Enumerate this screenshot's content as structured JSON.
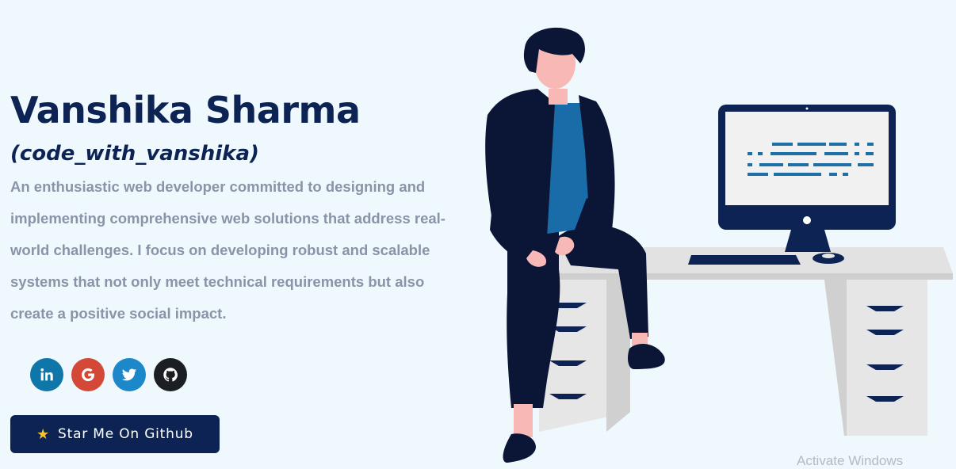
{
  "profile": {
    "name": "Vanshika Sharma",
    "handle": "(code_with_vanshika)",
    "bio": "An enthusiastic web developer committed to designing and implementing comprehensive web solutions that address real-world challenges. I focus on developing robust and scalable systems that not only meet technical requirements but also create a positive social impact."
  },
  "socials": [
    {
      "icon": "linkedin-icon",
      "color": "#0e76a8"
    },
    {
      "icon": "google-icon",
      "color": "#d34836"
    },
    {
      "icon": "twitter-icon",
      "color": "#1d88c9"
    },
    {
      "icon": "github-icon",
      "color": "#1b1f23"
    }
  ],
  "cta": {
    "icon": "star-icon",
    "label": "Star Me On Github"
  },
  "watermark": "Activate Windows",
  "colors": {
    "background": "#eef8fd",
    "primary": "#0c2354",
    "text_muted": "#8a93a8",
    "accent": "#1d6fa8",
    "star": "#f4c430"
  }
}
